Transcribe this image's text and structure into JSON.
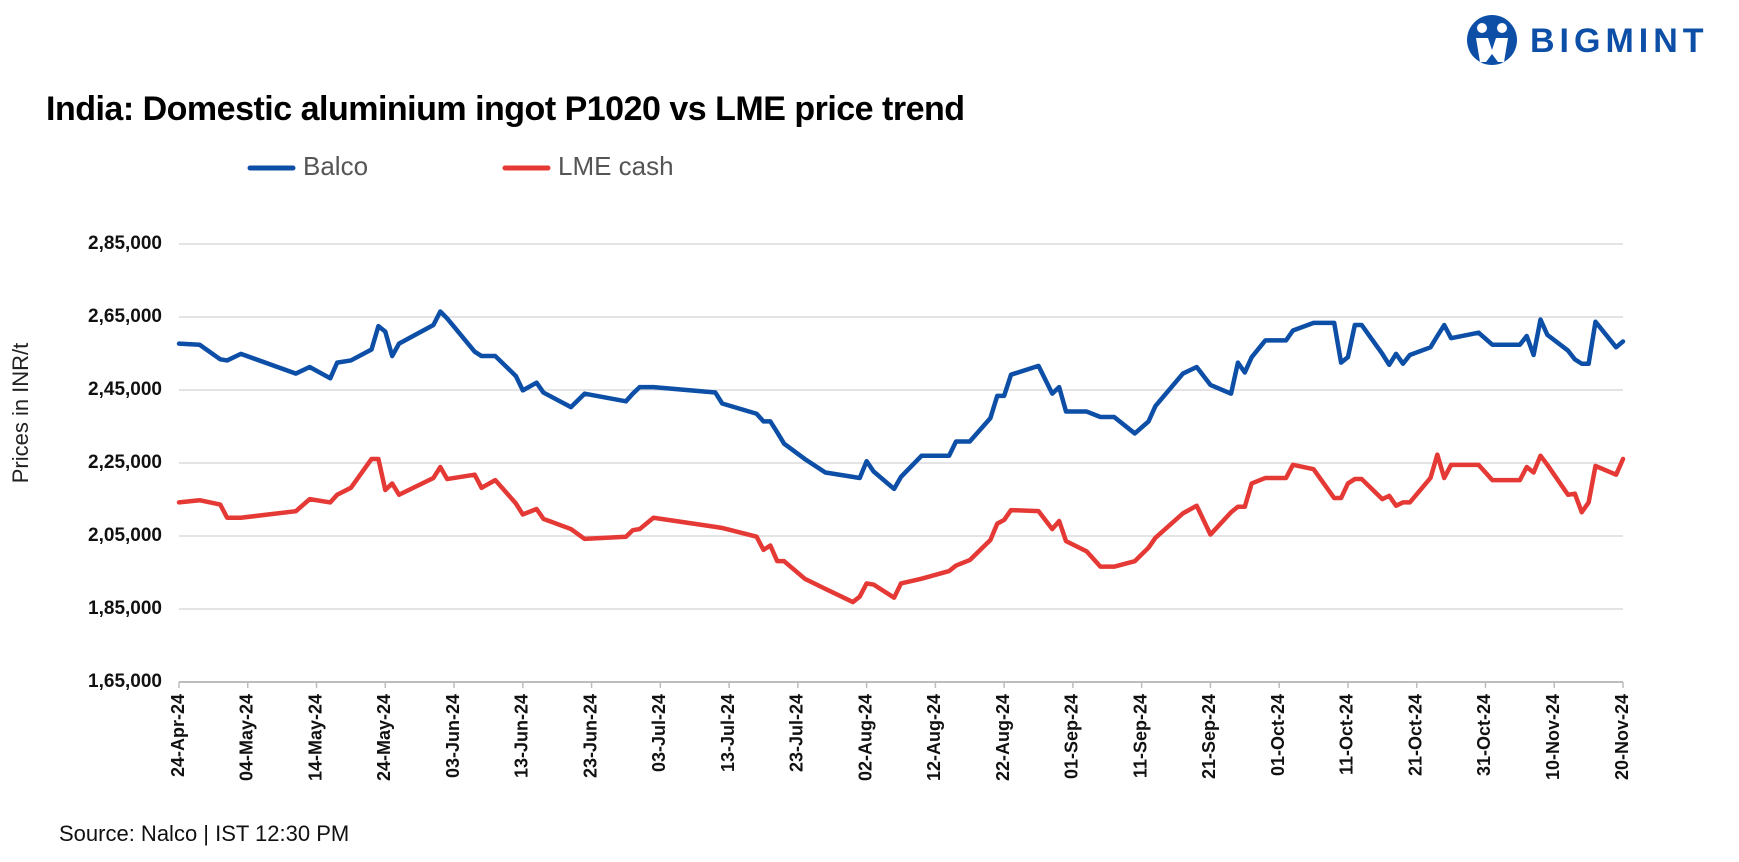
{
  "chart_data": {
    "type": "line",
    "title": "India: Domestic aluminium ingot P1020 vs LME price trend",
    "ylabel": "Prices in INR/t",
    "source": "Source: Nalco | IST 12:30 PM",
    "brand": "BIGMINT",
    "grid": true,
    "ylim": [
      165000,
      285000
    ],
    "yticks": [
      {
        "value": 165000,
        "label": "1,65,000"
      },
      {
        "value": 185000,
        "label": "1,85,000"
      },
      {
        "value": 205000,
        "label": "2,05,000"
      },
      {
        "value": 225000,
        "label": "2,25,000"
      },
      {
        "value": 245000,
        "label": "2,45,000"
      },
      {
        "value": 265000,
        "label": "2,65,000"
      },
      {
        "value": 285000,
        "label": "2,85,000"
      }
    ],
    "xlim": [
      "24-Apr-24",
      "20-Nov-24"
    ],
    "xticks": [
      "24-Apr-24",
      "04-May-24",
      "14-May-24",
      "24-May-24",
      "03-Jun-24",
      "13-Jun-24",
      "23-Jun-24",
      "03-Jul-24",
      "13-Jul-24",
      "23-Jul-24",
      "02-Aug-24",
      "12-Aug-24",
      "22-Aug-24",
      "01-Sep-24",
      "11-Sep-24",
      "21-Sep-24",
      "01-Oct-24",
      "11-Oct-24",
      "21-Oct-24",
      "31-Oct-24",
      "10-Nov-24",
      "20-Nov-24"
    ],
    "x": [
      "24-Apr-24",
      "27-Apr-24",
      "30-Apr-24",
      "01-May-24",
      "03-May-24",
      "11-May-24",
      "13-May-24",
      "16-May-24",
      "17-May-24",
      "19-May-24",
      "22-May-24",
      "23-May-24",
      "24-May-24",
      "25-May-24",
      "26-May-24",
      "31-May-24",
      "01-Jun-24",
      "02-Jun-24",
      "06-Jun-24",
      "07-Jun-24",
      "09-Jun-24",
      "12-Jun-24",
      "13-Jun-24",
      "15-Jun-24",
      "16-Jun-24",
      "20-Jun-24",
      "22-Jun-24",
      "28-Jun-24",
      "29-Jun-24",
      "30-Jun-24",
      "02-Jul-24",
      "11-Jul-24",
      "12-Jul-24",
      "17-Jul-24",
      "18-Jul-24",
      "19-Jul-24",
      "20-Jul-24",
      "21-Jul-24",
      "24-Jul-24",
      "27-Jul-24",
      "31-Jul-24",
      "01-Aug-24",
      "02-Aug-24",
      "03-Aug-24",
      "06-Aug-24",
      "07-Aug-24",
      "10-Aug-24",
      "14-Aug-24",
      "15-Aug-24",
      "17-Aug-24",
      "20-Aug-24",
      "21-Aug-24",
      "22-Aug-24",
      "23-Aug-24",
      "27-Aug-24",
      "29-Aug-24",
      "30-Aug-24",
      "31-Aug-24",
      "03-Sep-24",
      "05-Sep-24",
      "07-Sep-24",
      "10-Sep-24",
      "12-Sep-24",
      "13-Sep-24",
      "17-Sep-24",
      "19-Sep-24",
      "21-Sep-24",
      "24-Sep-24",
      "25-Sep-24",
      "26-Sep-24",
      "27-Sep-24",
      "29-Sep-24",
      "02-Oct-24",
      "03-Oct-24",
      "06-Oct-24",
      "09-Oct-24",
      "10-Oct-24",
      "11-Oct-24",
      "12-Oct-24",
      "13-Oct-24",
      "16-Oct-24",
      "17-Oct-24",
      "18-Oct-24",
      "19-Oct-24",
      "20-Oct-24",
      "23-Oct-24",
      "24-Oct-24",
      "25-Oct-24",
      "26-Oct-24",
      "30-Oct-24",
      "01-Nov-24",
      "05-Nov-24",
      "06-Nov-24",
      "07-Nov-24",
      "08-Nov-24",
      "09-Nov-24",
      "12-Nov-24",
      "13-Nov-24",
      "14-Nov-24",
      "15-Nov-24",
      "16-Nov-24",
      "19-Nov-24",
      "20-Nov-24"
    ],
    "series": [
      {
        "name": "Balco",
        "color": "#0d4fa6",
        "values": [
          257700,
          257400,
          253400,
          253100,
          254900,
          249500,
          251300,
          248200,
          252500,
          253100,
          256100,
          262500,
          261000,
          254300,
          257700,
          262800,
          266500,
          264600,
          255500,
          254300,
          254300,
          248800,
          244900,
          247000,
          244300,
          240300,
          244000,
          241900,
          244000,
          245800,
          245800,
          244300,
          241300,
          238500,
          236400,
          236400,
          233400,
          230300,
          226100,
          222400,
          221200,
          220900,
          225500,
          222700,
          217900,
          221200,
          227000,
          227000,
          230900,
          230900,
          237300,
          243400,
          243400,
          249200,
          251600,
          244000,
          245800,
          239100,
          239100,
          237600,
          237600,
          233100,
          236400,
          240600,
          249500,
          251300,
          246400,
          244000,
          252500,
          249800,
          254000,
          258600,
          258600,
          261300,
          263400,
          263400,
          252500,
          254000,
          262800,
          262800,
          254900,
          251900,
          254900,
          252200,
          254600,
          256700,
          259800,
          262800,
          259200,
          260700,
          257400,
          257400,
          259800,
          254600,
          264300,
          260100,
          255800,
          253400,
          252200,
          252200,
          263700,
          256700,
          258300
        ]
      },
      {
        "name": "LME cash",
        "color": "#e53935",
        "values": [
          214200,
          214800,
          213600,
          210000,
          210000,
          211800,
          215100,
          214200,
          216300,
          218200,
          226100,
          226100,
          217600,
          219400,
          216300,
          220900,
          223900,
          220600,
          221800,
          218200,
          220300,
          213900,
          210900,
          212400,
          209700,
          206900,
          204200,
          204800,
          206600,
          206900,
          210000,
          207500,
          207200,
          204800,
          201200,
          202400,
          198100,
          198100,
          193300,
          190500,
          186900,
          188400,
          192000,
          191700,
          188100,
          192000,
          193300,
          195400,
          196900,
          198400,
          203900,
          208400,
          209400,
          212100,
          211800,
          206900,
          209100,
          203600,
          200800,
          196600,
          196600,
          198100,
          201800,
          204500,
          211200,
          213300,
          205400,
          211500,
          213000,
          213000,
          219400,
          220900,
          220900,
          224500,
          223300,
          215400,
          215400,
          219400,
          220600,
          220600,
          215100,
          216000,
          213300,
          214200,
          214200,
          220900,
          227300,
          220900,
          224500,
          224500,
          220300,
          220300,
          223900,
          222400,
          227000,
          224500,
          216300,
          216600,
          211500,
          214200,
          224200,
          221800,
          226100
        ]
      }
    ]
  }
}
